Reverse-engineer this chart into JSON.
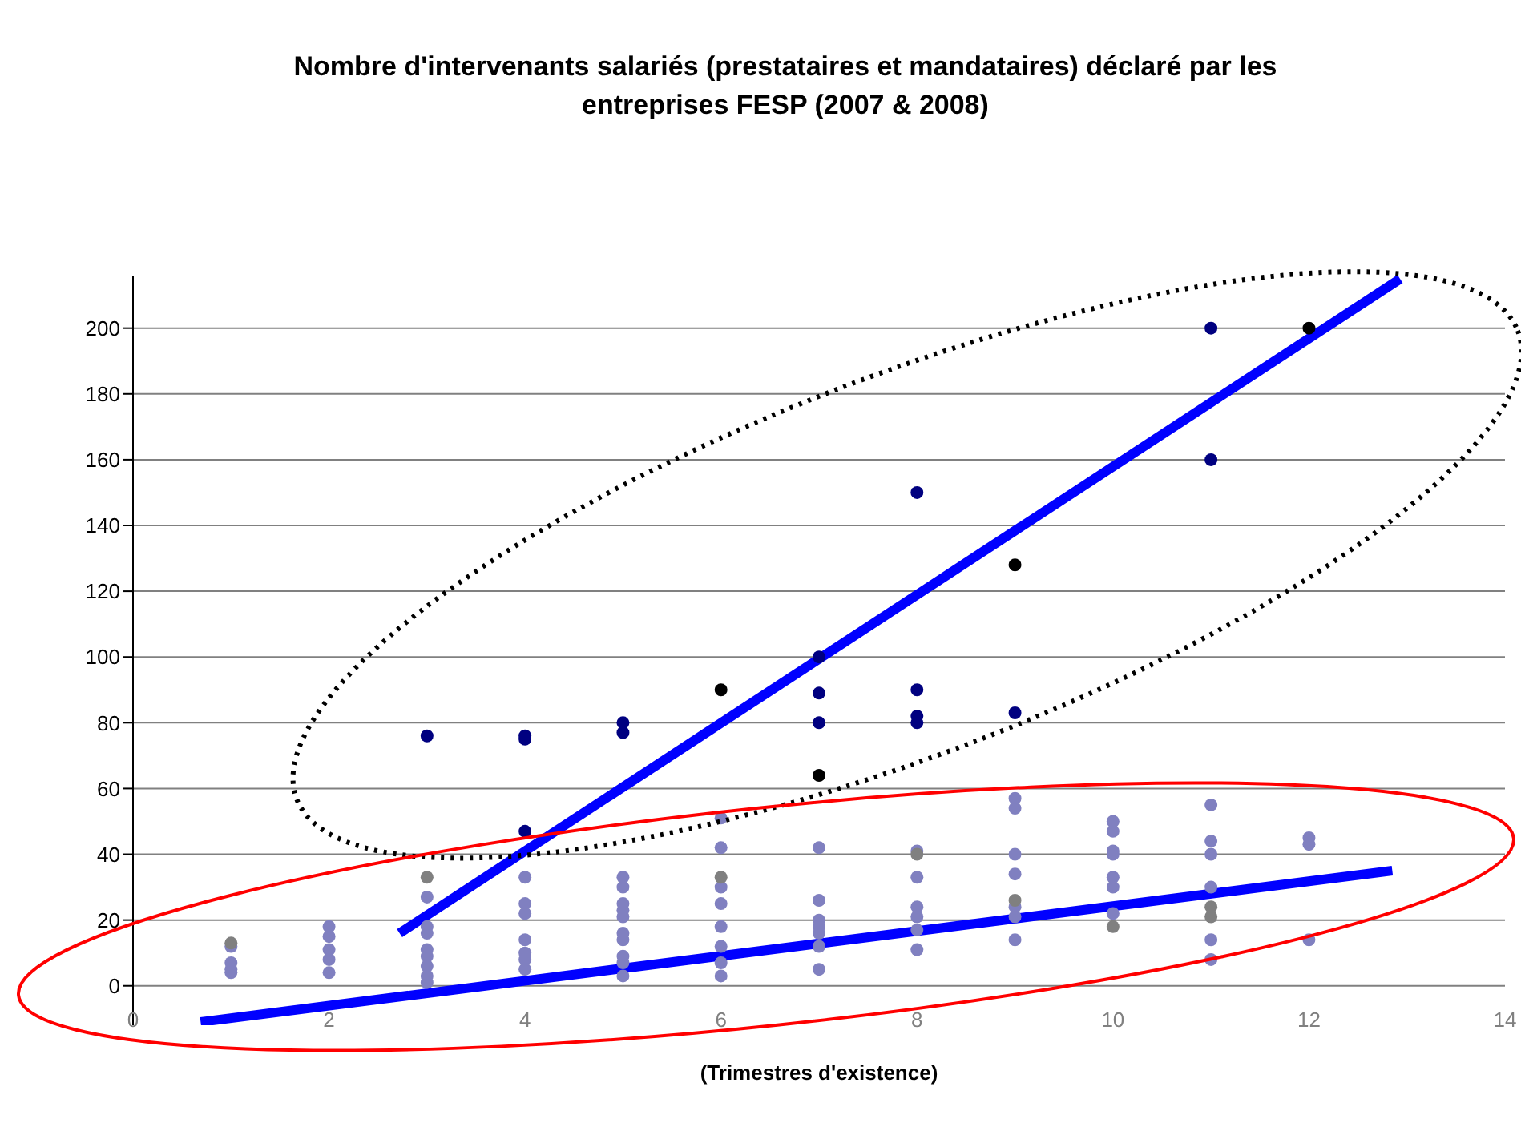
{
  "chart_data": {
    "type": "scatter",
    "title": "Nombre d'intervenants salariés (prestataires et mandataires) déclaré par les entreprises FESP (2007 & 2008)",
    "xlabel": "(Trimestres d'existence)",
    "xlim": [
      0,
      14
    ],
    "xticks": [
      0,
      2,
      4,
      6,
      8,
      10,
      12,
      14
    ],
    "ylim": [
      -12,
      216
    ],
    "yticks": [
      0,
      20,
      40,
      60,
      80,
      100,
      120,
      140,
      160,
      180,
      200
    ],
    "grid": "y",
    "marker": "circle",
    "series": [
      {
        "color": "#000080",
        "x": [
          3,
          4,
          4,
          4,
          5,
          5,
          7,
          7,
          7,
          8,
          8,
          8,
          8,
          9,
          11,
          11
        ],
        "values": [
          76,
          76,
          75,
          47,
          77,
          80,
          89,
          80,
          100,
          150,
          90,
          82,
          80,
          83,
          200,
          160
        ]
      },
      {
        "color": "#000000",
        "x": [
          6,
          7,
          9,
          12
        ],
        "values": [
          90,
          64,
          128,
          200
        ]
      },
      {
        "color": "#8080c0",
        "x": [
          1,
          1,
          1,
          1,
          2,
          2,
          2,
          2,
          2,
          3,
          3,
          3,
          3,
          3,
          3,
          3,
          3,
          4,
          4,
          4,
          4,
          4,
          4,
          4,
          5,
          5,
          5,
          5,
          5,
          5,
          5,
          5,
          5,
          5,
          6,
          6,
          6,
          6,
          6,
          6,
          6,
          6,
          7,
          7,
          7,
          7,
          7,
          7,
          7,
          8,
          8,
          8,
          8,
          8,
          8,
          9,
          9,
          9,
          9,
          9,
          9,
          9,
          10,
          10,
          10,
          10,
          10,
          10,
          10,
          11,
          11,
          11,
          11,
          11,
          11,
          12,
          12,
          12
        ],
        "values": [
          12,
          7,
          5,
          4,
          18,
          15,
          11,
          8,
          4,
          27,
          18,
          16,
          11,
          9,
          6,
          3,
          1,
          33,
          25,
          22,
          14,
          10,
          8,
          5,
          33,
          30,
          25,
          23,
          21,
          16,
          14,
          9,
          7,
          3,
          51,
          42,
          30,
          25,
          18,
          12,
          7,
          3,
          42,
          26,
          20,
          18,
          16,
          12,
          5,
          41,
          33,
          24,
          21,
          17,
          11,
          57,
          54,
          40,
          34,
          24,
          21,
          14,
          50,
          47,
          41,
          40,
          33,
          30,
          22,
          55,
          44,
          40,
          30,
          14,
          8,
          45,
          43,
          14
        ]
      },
      {
        "color": "#808080",
        "x": [
          1,
          3,
          6,
          8,
          9,
          10,
          11,
          11
        ],
        "values": [
          13,
          33,
          33,
          40,
          26,
          18,
          24,
          21
        ]
      },
      {
        "type": "line",
        "marker": "none",
        "color": "#0000ff",
        "x": [
          2.72,
          12.93
        ],
        "values": [
          16,
          215
        ]
      },
      {
        "type": "line",
        "marker": "none",
        "color": "#0000ff",
        "x": [
          0.69,
          12.85
        ],
        "values": [
          -11,
          35
        ]
      }
    ]
  }
}
